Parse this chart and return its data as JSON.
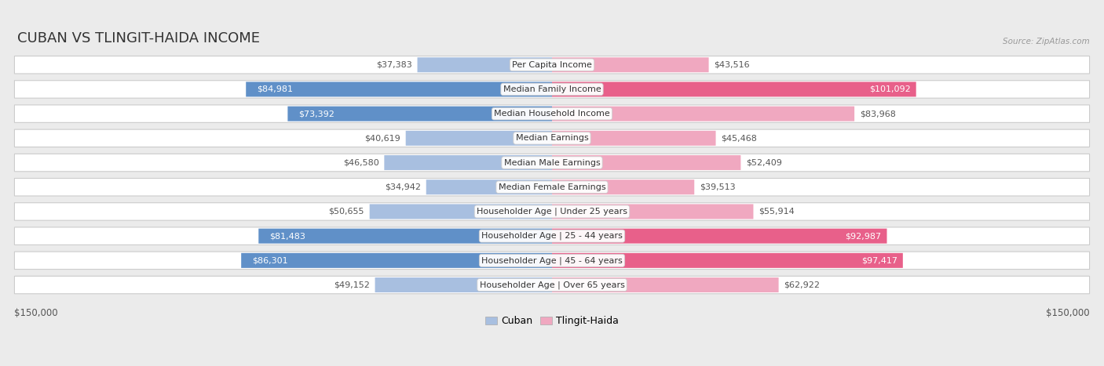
{
  "title": "CUBAN VS TLINGIT-HAIDA INCOME",
  "source": "Source: ZipAtlas.com",
  "categories": [
    "Per Capita Income",
    "Median Family Income",
    "Median Household Income",
    "Median Earnings",
    "Median Male Earnings",
    "Median Female Earnings",
    "Householder Age | Under 25 years",
    "Householder Age | 25 - 44 years",
    "Householder Age | 45 - 64 years",
    "Householder Age | Over 65 years"
  ],
  "cuban_values": [
    37383,
    84981,
    73392,
    40619,
    46580,
    34942,
    50655,
    81483,
    86301,
    49152
  ],
  "tlingit_values": [
    43516,
    101092,
    83968,
    45468,
    52409,
    39513,
    55914,
    92987,
    97417,
    62922
  ],
  "cuban_labels": [
    "$37,383",
    "$84,981",
    "$73,392",
    "$40,619",
    "$46,580",
    "$34,942",
    "$50,655",
    "$81,483",
    "$86,301",
    "$49,152"
  ],
  "tlingit_labels": [
    "$43,516",
    "$101,092",
    "$83,968",
    "$45,468",
    "$52,409",
    "$39,513",
    "$55,914",
    "$92,987",
    "$97,417",
    "$62,922"
  ],
  "max_value": 150000,
  "cuban_bar_color_light": "#a8bfe0",
  "cuban_bar_color_dark": "#6090c8",
  "tlingit_bar_color_light": "#f0a8c0",
  "tlingit_bar_color_dark": "#e8608a",
  "bg_color": "#ebebeb",
  "row_bg_color": "#ffffff",
  "legend_cuban": "Cuban",
  "legend_tlingit": "Tlingit-Haida",
  "xlabel_left": "$150,000",
  "xlabel_right": "$150,000",
  "title_fontsize": 13,
  "label_fontsize": 8,
  "category_fontsize": 8,
  "cuban_dark_indices": [
    1,
    2,
    7,
    8
  ],
  "tlingit_dark_indices": [
    1,
    7,
    8
  ]
}
